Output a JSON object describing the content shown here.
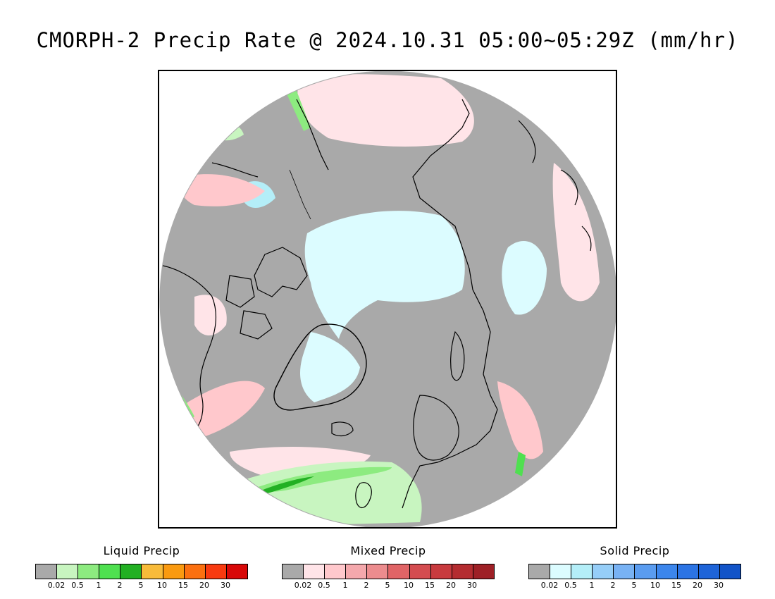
{
  "title": "CMORPH-2 Precip Rate @ 2024.10.31 05:00~05:29Z (mm/hr)",
  "map": {
    "projection": "north-polar-stereographic",
    "background_color": "#a9a9a9",
    "coastline_color": "#000000"
  },
  "legends": [
    {
      "title": "Liquid Precip",
      "colors": [
        "#a9a9a9",
        "#c8f5c0",
        "#8deb80",
        "#4fe050",
        "#22b023",
        "#f8bb3a",
        "#fa9a10",
        "#fb7010",
        "#f83a10",
        "#d80808"
      ],
      "tick_labels": [
        "0.02",
        "0.5",
        "1",
        "2",
        "5",
        "10",
        "15",
        "20",
        "30"
      ]
    },
    {
      "title": "Mixed Precip",
      "colors": [
        "#a9a9a9",
        "#ffe4e8",
        "#ffc8cc",
        "#f4a8ac",
        "#ec8c8e",
        "#e06466",
        "#d44c50",
        "#c83a3e",
        "#b42c30",
        "#9e2026"
      ],
      "tick_labels": [
        "0.02",
        "0.5",
        "1",
        "2",
        "5",
        "10",
        "15",
        "20",
        "30"
      ]
    },
    {
      "title": "Solid Precip",
      "colors": [
        "#a9a9a9",
        "#dcfcff",
        "#b4eef8",
        "#96cef8",
        "#78b2f4",
        "#5a9cf0",
        "#3c86ec",
        "#2c74e4",
        "#1e64d8",
        "#1254c8"
      ],
      "tick_labels": [
        "0.02",
        "0.5",
        "1",
        "2",
        "5",
        "10",
        "15",
        "20",
        "30"
      ]
    }
  ]
}
